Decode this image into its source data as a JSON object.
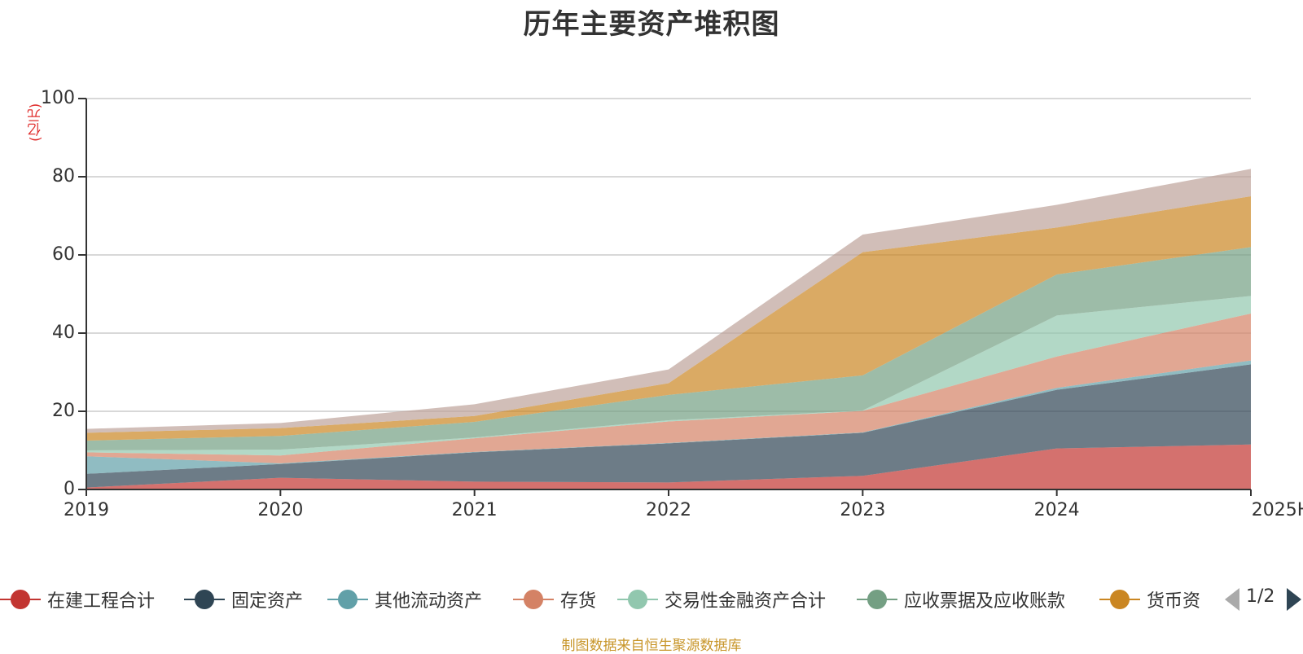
{
  "title": "历年主要资产堆积图",
  "unit_label": "(亿元)",
  "source_note": "制图数据来自恒生聚源数据库",
  "legend_page": "1/2",
  "chart_data": {
    "type": "area",
    "stacked": true,
    "title": "历年主要资产堆积图",
    "ylabel": "(亿元)",
    "ylim": [
      0,
      100
    ],
    "yticks": [
      0,
      20,
      40,
      60,
      80,
      100
    ],
    "grid": true,
    "legend_position": "bottom",
    "categories": [
      "2019",
      "2020",
      "2021",
      "2022",
      "2023",
      "2024",
      "2025H1"
    ],
    "series": [
      {
        "name": "在建工程合计",
        "color": "#c23531",
        "values": [
          0.5,
          3,
          2,
          1.8,
          3.5,
          10.5,
          11.5
        ]
      },
      {
        "name": "固定资产",
        "color": "#2f4554",
        "values": [
          3.5,
          3.5,
          7.5,
          10,
          11,
          15,
          20.5
        ]
      },
      {
        "name": "其他流动资产",
        "color": "#61a0a8",
        "values": [
          4.5,
          0.2,
          0.1,
          0.1,
          0.1,
          0.5,
          1
        ]
      },
      {
        "name": "存货",
        "color": "#d48265",
        "values": [
          1,
          2,
          3.5,
          5.5,
          5.5,
          8,
          12
        ]
      },
      {
        "name": "交易性金融资产合计",
        "color": "#91c7ae",
        "values": [
          0.5,
          1.5,
          0.2,
          0.3,
          0.1,
          10.5,
          4.5
        ]
      },
      {
        "name": "应收票据及应收账款",
        "color": "#749f83",
        "values": [
          2.5,
          3.5,
          4,
          6.5,
          9,
          10.5,
          12.5
        ]
      },
      {
        "name": "货币资",
        "color": "#ca8622",
        "values": [
          2,
          2,
          1.5,
          3,
          31.5,
          12,
          13
        ]
      },
      {
        "name": "",
        "color": "#bda29a",
        "values": [
          1,
          1.3,
          3,
          3.5,
          4.5,
          5.8,
          7
        ]
      }
    ]
  }
}
